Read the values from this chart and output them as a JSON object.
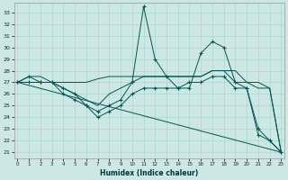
{
  "xlabel": "Humidex (Indice chaleur)",
  "bg_color": "#cde8e4",
  "grid_color": "#a8d8d0",
  "line_color": "#005555",
  "ylim": [
    20.5,
    33.8
  ],
  "xlim": [
    -0.3,
    23.3
  ],
  "yticks": [
    21,
    22,
    23,
    24,
    25,
    26,
    27,
    28,
    29,
    30,
    31,
    32,
    33
  ],
  "xticks": [
    0,
    1,
    2,
    3,
    4,
    5,
    6,
    7,
    8,
    9,
    10,
    11,
    12,
    13,
    14,
    15,
    16,
    17,
    18,
    19,
    20,
    21,
    22,
    23
  ],
  "lines": [
    {
      "x": [
        0,
        1,
        2,
        3,
        4,
        5,
        6,
        7,
        8,
        9,
        10,
        11,
        12,
        13,
        14,
        15,
        16,
        17,
        18,
        19,
        20,
        21,
        22,
        23
      ],
      "y": [
        27,
        27.5,
        27.5,
        27,
        27,
        27,
        27,
        27.3,
        27.5,
        27.5,
        27.5,
        27.5,
        27.5,
        27.5,
        27.5,
        27.5,
        27.5,
        28,
        28,
        28,
        27,
        27,
        26.5,
        21
      ],
      "marker": false
    },
    {
      "x": [
        0,
        1,
        2,
        3,
        4,
        5,
        6,
        7,
        8,
        9,
        10,
        11,
        12,
        13,
        14,
        15,
        16,
        17,
        18,
        19,
        20,
        21,
        22,
        23
      ],
      "y": [
        27,
        27.5,
        27,
        27,
        26.5,
        26,
        25,
        24.5,
        25,
        25.5,
        27,
        33.5,
        29,
        27.5,
        26.5,
        26.5,
        29.5,
        30.5,
        30,
        27,
        26.5,
        22.5,
        22,
        21
      ],
      "marker": true
    },
    {
      "x": [
        0,
        1,
        2,
        3,
        4,
        5,
        6,
        7,
        8,
        9,
        10,
        11,
        12,
        13,
        14,
        15,
        16,
        17,
        18,
        19,
        20,
        21,
        22,
        23
      ],
      "y": [
        27,
        27,
        27,
        27,
        26.5,
        26,
        25.5,
        25,
        26,
        26.5,
        27,
        27.5,
        27.5,
        27.5,
        27.5,
        27.5,
        27.5,
        28,
        28,
        27,
        27,
        26.5,
        26.5,
        21
      ],
      "marker": false
    },
    {
      "x": [
        0,
        23
      ],
      "y": [
        27,
        21
      ],
      "marker": false
    },
    {
      "x": [
        0,
        1,
        2,
        3,
        4,
        5,
        6,
        7,
        8,
        9,
        10,
        11,
        12,
        13,
        14,
        15,
        16,
        17,
        18,
        19,
        20,
        21,
        22,
        23
      ],
      "y": [
        27,
        27,
        27,
        27,
        26,
        25.5,
        25,
        24,
        24.5,
        25,
        26,
        26.5,
        26.5,
        26.5,
        26.5,
        27,
        27,
        27.5,
        27.5,
        26.5,
        26.5,
        23,
        22,
        21
      ],
      "marker": true
    }
  ]
}
